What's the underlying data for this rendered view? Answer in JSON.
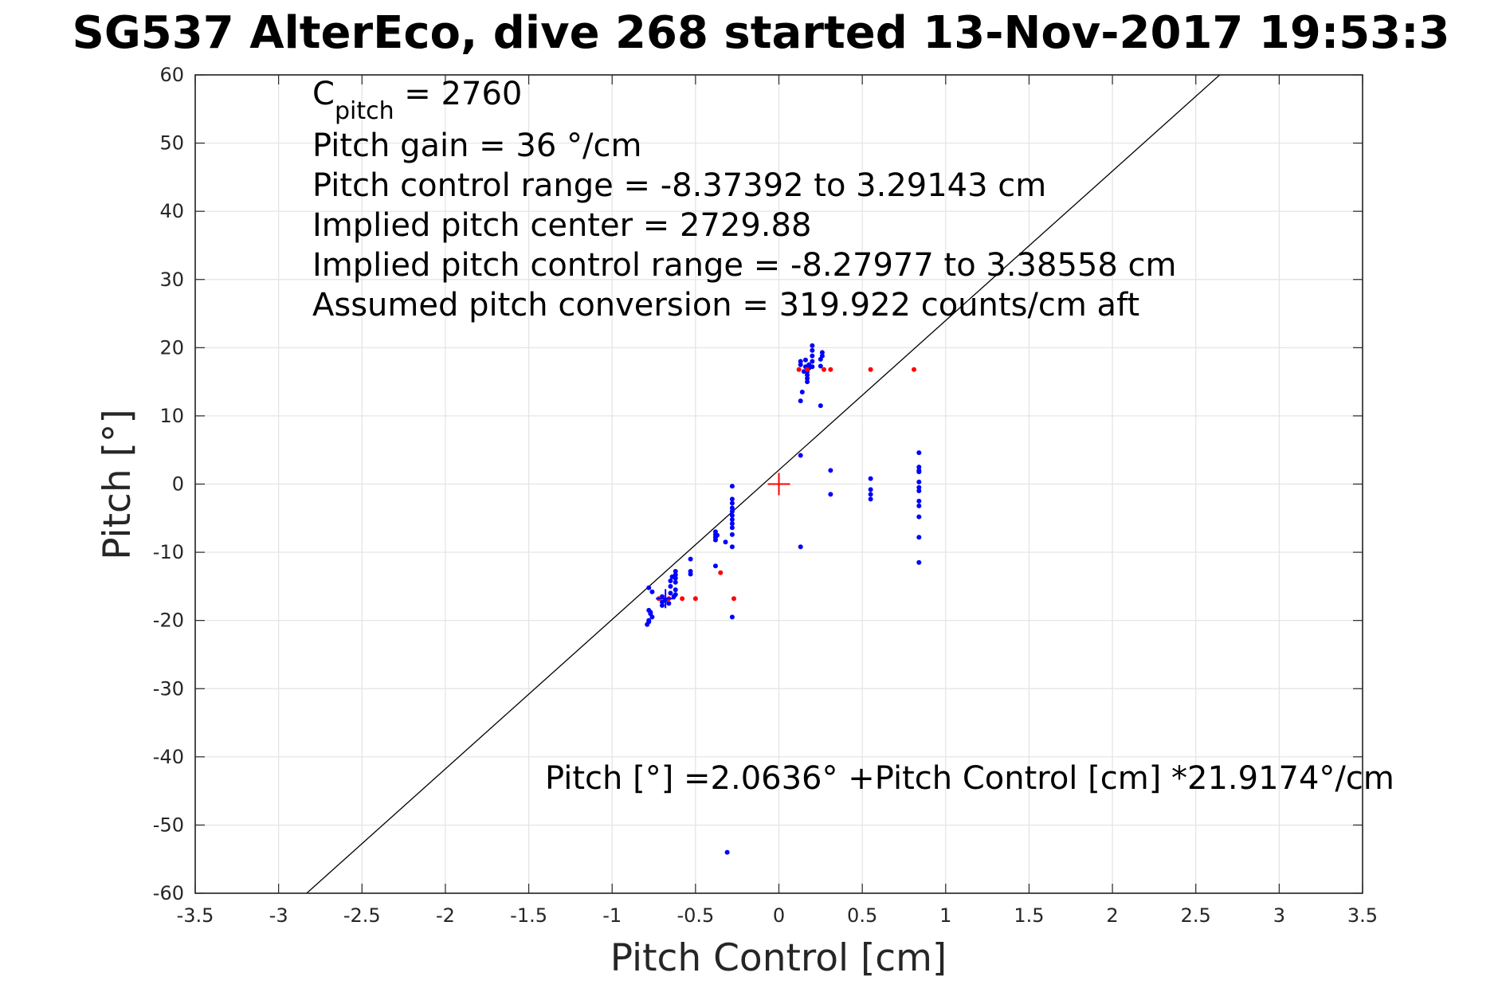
{
  "chart_data": {
    "type": "scatter",
    "title": "SG537 AlterEco, dive 268 started 13-Nov-2017 19:53:3",
    "xlabel": "Pitch Control [cm]",
    "ylabel": "Pitch [°]",
    "xlim": [
      -3.5,
      3.5
    ],
    "ylim": [
      -60,
      60
    ],
    "xticks": [
      -3.5,
      -3,
      -2.5,
      -2,
      -1.5,
      -1,
      -0.5,
      0,
      0.5,
      1,
      1.5,
      2,
      2.5,
      3,
      3.5
    ],
    "yticks": [
      -60,
      -50,
      -40,
      -30,
      -20,
      -10,
      0,
      10,
      20,
      30,
      40,
      50,
      60
    ],
    "xtick_labels": [
      "-3.5",
      "-3",
      "-2.5",
      "-2",
      "-1.5",
      "-1",
      "-0.5",
      "0",
      "0.5",
      "1",
      "1.5",
      "2",
      "2.5",
      "3",
      "3.5"
    ],
    "ytick_labels": [
      "-60",
      "-50",
      "-40",
      "-30",
      "-20",
      "-10",
      "0",
      "10",
      "20",
      "30",
      "40",
      "50",
      "60"
    ],
    "grid": true,
    "colors": {
      "series_blue": "#0000ff",
      "series_red": "#ff0000",
      "fit_line": "#000000",
      "grid": "#e3e3e3"
    },
    "annotations": {
      "c_pitch_symbol": "C",
      "c_pitch_subscript": "pitch",
      "c_pitch_value": " = 2760",
      "pitch_gain": "Pitch gain = 36 °/cm",
      "pitch_control_range": "Pitch control range = -8.37392 to 3.29143 cm",
      "implied_pitch_center": "Implied pitch center = 2729.88",
      "implied_pitch_control_range": "Implied pitch control range = -8.27977 to 3.38558 cm",
      "assumed_pitch_conversion": "Assumed pitch conversion = 319.922 counts/cm aft",
      "fit_equation": "Pitch [°] =2.0636° +Pitch Control [cm] *21.9174°/cm"
    },
    "fit_line": {
      "intercept": 2.0636,
      "slope": 21.9174
    },
    "center_marker": {
      "x": 0,
      "y": 0
    },
    "secondary_marker": {
      "x": -0.68,
      "y": -16.8
    },
    "series": [
      {
        "color": "#0000ff",
        "points": [
          [
            -0.78,
            -15.2
          ],
          [
            -0.76,
            -15.8
          ],
          [
            -0.78,
            -18.5
          ],
          [
            -0.77,
            -19.0
          ],
          [
            -0.76,
            -19.5
          ],
          [
            -0.78,
            -20.0
          ],
          [
            -0.79,
            -20.6
          ],
          [
            -0.78,
            -20.2
          ],
          [
            -0.77,
            -18.8
          ],
          [
            -0.7,
            -16.5
          ],
          [
            -0.7,
            -17.3
          ],
          [
            -0.7,
            -17.8
          ],
          [
            -0.68,
            -17.0
          ],
          [
            -0.66,
            -17.5
          ],
          [
            -0.65,
            -16.0
          ],
          [
            -0.65,
            -15.0
          ],
          [
            -0.65,
            -14.2
          ],
          [
            -0.64,
            -13.6
          ],
          [
            -0.63,
            -16.5
          ],
          [
            -0.62,
            -12.8
          ],
          [
            -0.62,
            -13.3
          ],
          [
            -0.62,
            -13.8
          ],
          [
            -0.62,
            -14.4
          ],
          [
            -0.62,
            -15.5
          ],
          [
            -0.62,
            -16.2
          ],
          [
            -0.53,
            -11.0
          ],
          [
            -0.53,
            -12.8
          ],
          [
            -0.53,
            -13.2
          ],
          [
            -0.38,
            -7.0
          ],
          [
            -0.38,
            -7.4
          ],
          [
            -0.38,
            -7.8
          ],
          [
            -0.38,
            -8.2
          ],
          [
            -0.37,
            -7.5
          ],
          [
            -0.38,
            -12.0
          ],
          [
            -0.32,
            -8.5
          ],
          [
            -0.28,
            -0.3
          ],
          [
            -0.28,
            -2.2
          ],
          [
            -0.28,
            -2.8
          ],
          [
            -0.28,
            -3.5
          ],
          [
            -0.28,
            -4.0
          ],
          [
            -0.28,
            -4.6
          ],
          [
            -0.28,
            -5.2
          ],
          [
            -0.28,
            -5.8
          ],
          [
            -0.28,
            -6.4
          ],
          [
            -0.28,
            -7.4
          ],
          [
            -0.28,
            -9.2
          ],
          [
            -0.28,
            -19.5
          ],
          [
            -0.31,
            -54.0
          ],
          [
            0.13,
            4.2
          ],
          [
            0.13,
            -9.2
          ],
          [
            0.13,
            12.2
          ],
          [
            0.14,
            13.5
          ],
          [
            0.13,
            17.5
          ],
          [
            0.13,
            18.0
          ],
          [
            0.15,
            16.5
          ],
          [
            0.16,
            17.2
          ],
          [
            0.16,
            18.2
          ],
          [
            0.17,
            15.0
          ],
          [
            0.17,
            15.5
          ],
          [
            0.17,
            16.0
          ],
          [
            0.17,
            16.5
          ],
          [
            0.18,
            17.0
          ],
          [
            0.18,
            17.5
          ],
          [
            0.2,
            17.2
          ],
          [
            0.2,
            18.0
          ],
          [
            0.2,
            18.8
          ],
          [
            0.2,
            19.6
          ],
          [
            0.2,
            20.3
          ],
          [
            0.25,
            17.3
          ],
          [
            0.25,
            18.3
          ],
          [
            0.26,
            18.8
          ],
          [
            0.26,
            19.3
          ],
          [
            0.25,
            11.5
          ],
          [
            0.31,
            2.0
          ],
          [
            0.31,
            -1.5
          ],
          [
            0.55,
            0.8
          ],
          [
            0.55,
            -0.8
          ],
          [
            0.55,
            -1.5
          ],
          [
            0.55,
            -2.2
          ],
          [
            0.84,
            4.6
          ],
          [
            0.84,
            2.5
          ],
          [
            0.84,
            2.0
          ],
          [
            0.84,
            1.8
          ],
          [
            0.84,
            0.3
          ],
          [
            0.84,
            -0.5
          ],
          [
            0.84,
            -1.0
          ],
          [
            0.84,
            -2.5
          ],
          [
            0.84,
            -3.2
          ],
          [
            0.84,
            -4.8
          ],
          [
            0.84,
            -7.8
          ],
          [
            0.84,
            -11.5
          ]
        ]
      },
      {
        "color": "#ff0000",
        "points": [
          [
            -0.72,
            -16.8
          ],
          [
            -0.66,
            -16.8
          ],
          [
            -0.58,
            -16.8
          ],
          [
            -0.5,
            -16.8
          ],
          [
            -0.35,
            -13.0
          ],
          [
            -0.27,
            -16.8
          ],
          [
            0.12,
            16.8
          ],
          [
            0.17,
            16.8
          ],
          [
            0.27,
            16.8
          ],
          [
            0.31,
            16.8
          ],
          [
            0.55,
            16.8
          ],
          [
            0.81,
            16.8
          ]
        ]
      }
    ]
  }
}
